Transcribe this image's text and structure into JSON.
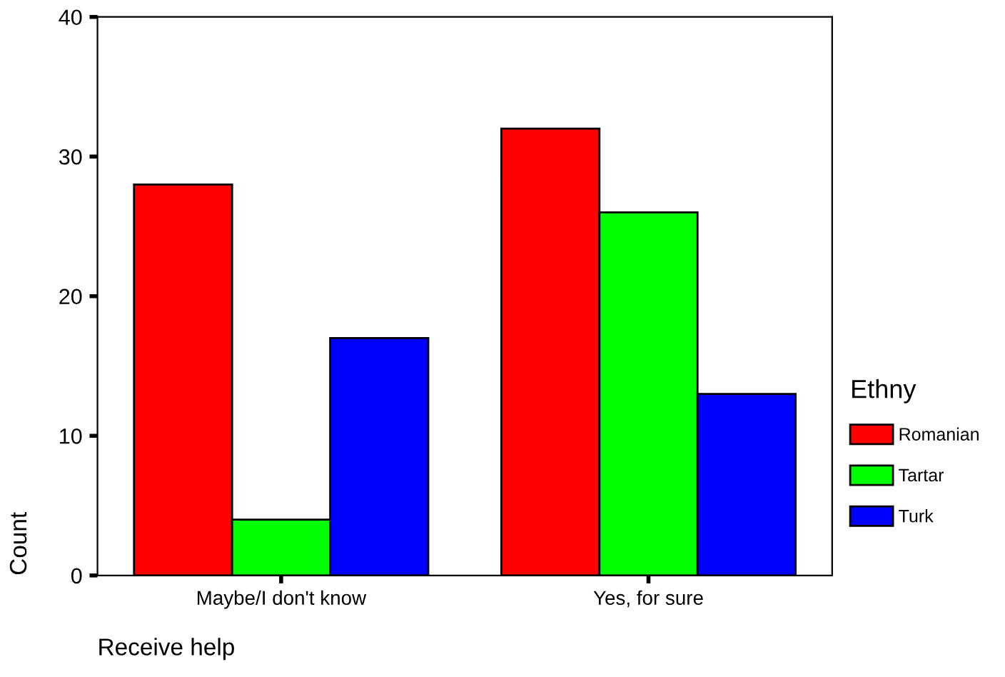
{
  "chart_data": {
    "type": "bar",
    "xlabel": "Receive help",
    "ylabel": "Count",
    "legend_title": "Ethny",
    "categories": [
      "Maybe/I don't know",
      "Yes, for sure"
    ],
    "series": [
      {
        "name": "Romanian",
        "color": "#ff0000",
        "values": [
          28,
          32
        ]
      },
      {
        "name": "Tartar",
        "color": "#00ff00",
        "values": [
          4,
          26
        ]
      },
      {
        "name": "Turk",
        "color": "#0000ff",
        "values": [
          17,
          13
        ]
      }
    ],
    "ylim": [
      0,
      40
    ],
    "yticks": [
      0,
      10,
      20,
      30,
      40
    ],
    "grid": false,
    "legend": "right"
  }
}
